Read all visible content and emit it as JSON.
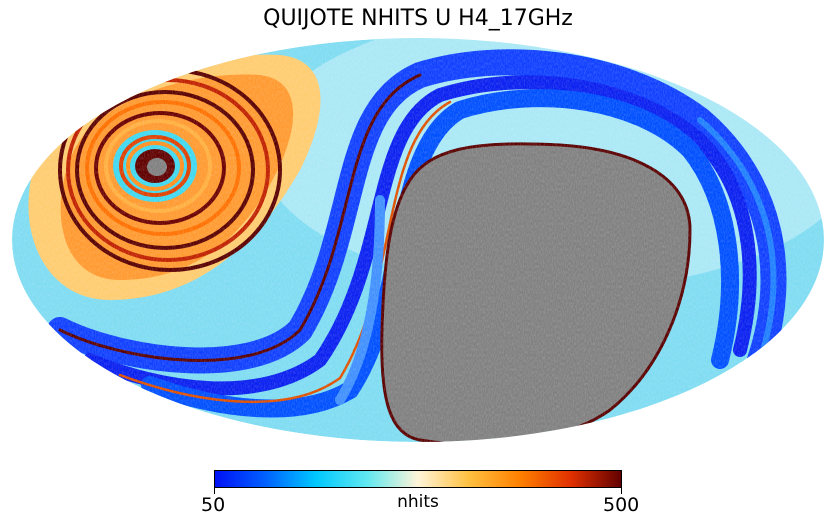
{
  "title": "QUIJOTE NHITS U H4_17GHz",
  "colorbar": {
    "label": "nhits",
    "min_label": "50",
    "max_label": "500",
    "vmin": 50,
    "vmax": 500,
    "colors": [
      "#0010f5",
      "#0060ff",
      "#00c8ff",
      "#60e8f0",
      "#fff4d8",
      "#ffc040",
      "#ff8000",
      "#e03000",
      "#600000"
    ]
  },
  "map": {
    "projection": "mollweide",
    "masked_color": "#808080"
  }
}
